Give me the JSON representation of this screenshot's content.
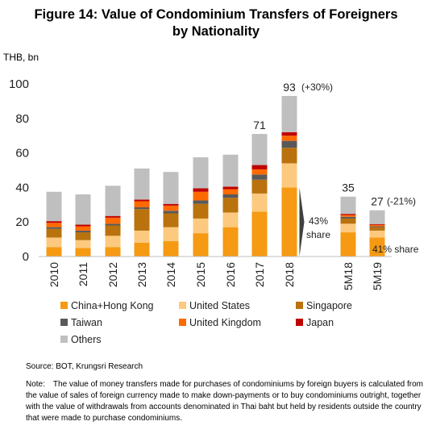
{
  "title_line1": "Figure 14: Value of Condominium Transfers of Foreigners",
  "title_line2": "by Nationality",
  "source": "Source: BOT, Krungsri Research",
  "note_label": "Note:",
  "note_text": "The value of money transfers made for purchases of condominiums by foreign buyers is calculated from the value of sales of foreign currency made to make down-payments or to buy condominiums outright, together with the value of withdrawals from accounts denominated in Thai baht but held by residents outside the country that were made to purchase condominiums.",
  "chart_data": {
    "type": "bar",
    "stacked": true,
    "ylabel": "THB, bn",
    "ylim": [
      0,
      100
    ],
    "yticks": [
      0,
      20,
      40,
      60,
      80,
      100
    ],
    "grid": false,
    "legend_position": "bottom",
    "categories": [
      "2010",
      "2011",
      "2012",
      "2013",
      "2014",
      "2015",
      "2016",
      "2017",
      "2018",
      "5M18",
      "5M19"
    ],
    "series": [
      {
        "name": "China+Hong Kong",
        "color": "#F59A12",
        "values": [
          5.5,
          5,
          5.5,
          8,
          9,
          13.5,
          17,
          26,
          40,
          14,
          11
        ]
      },
      {
        "name": "United States",
        "color": "#FDC97E",
        "values": [
          5.5,
          4.5,
          6.5,
          7,
          8,
          8.5,
          8.5,
          10.5,
          14,
          5,
          4
        ]
      },
      {
        "name": "Singapore",
        "color": "#B9720D",
        "values": [
          5,
          4.5,
          6,
          12.5,
          8,
          8.5,
          8.5,
          8,
          9,
          3,
          2
        ]
      },
      {
        "name": "Taiwan",
        "color": "#595959",
        "values": [
          1,
          1,
          1,
          1,
          1.5,
          2,
          2,
          3,
          4,
          1,
          0.5
        ]
      },
      {
        "name": "United Kingdom",
        "color": "#FF6A00",
        "values": [
          2.5,
          2.5,
          3.5,
          3.5,
          3,
          5,
          3,
          3,
          3,
          1,
          0.8
        ]
      },
      {
        "name": "Japan",
        "color": "#C00000",
        "values": [
          1,
          1,
          1,
          1,
          1,
          2,
          1.5,
          2.5,
          2,
          0.7,
          0.5
        ]
      },
      {
        "name": "Others",
        "color": "#BFBFBF",
        "values": [
          17,
          17.5,
          17.5,
          18,
          18.5,
          18,
          18.5,
          18,
          21,
          10,
          8
        ]
      }
    ],
    "annotations": {
      "total_2017": "71",
      "total_2018": "93",
      "growth_2018": "(+30%)",
      "total_5M18": "35",
      "total_5M19": "27",
      "growth_5M19": "(-21%)",
      "share_2018_line1": "43%",
      "share_2018_line2": "share",
      "share_5M19": "41% share"
    }
  }
}
